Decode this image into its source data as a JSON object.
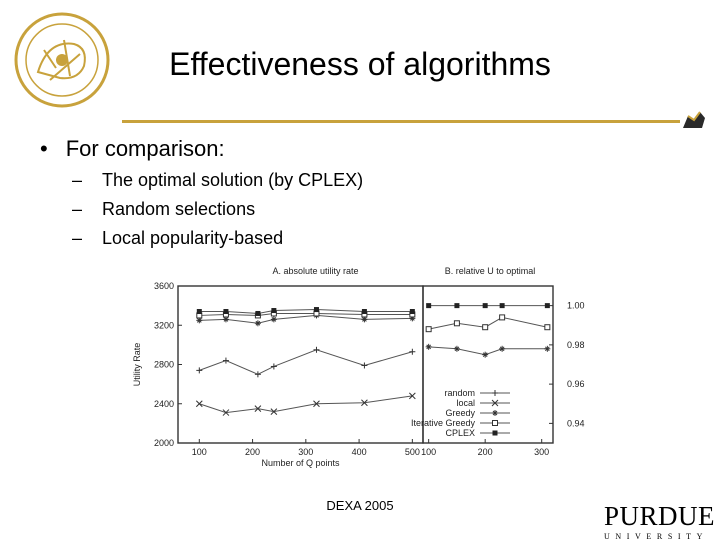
{
  "slide": {
    "title": "Effectiveness of algorithms",
    "bullet": "For comparison:",
    "sub_bullets": [
      "The optimal solution (by CPLEX)",
      "Random selections",
      "Local popularity-based"
    ],
    "footer": "DEXA 2005",
    "brand_word": "PURDUE",
    "brand_sub": "UNIVERSITY",
    "accent_color": "#c8a23c"
  },
  "chart_data": [
    {
      "type": "line",
      "title": "A. absolute utility rate",
      "xlabel": "Number of Q points",
      "ylabel": "Utility Rate",
      "x_ticks": [
        100,
        200,
        300,
        400,
        500
      ],
      "y_ticks": [
        2000,
        2400,
        2800,
        3200,
        3600
      ],
      "xlim": [
        60,
        520
      ],
      "ylim": [
        2000,
        3600
      ],
      "grid": false,
      "series": [
        {
          "name": "random",
          "marker": "plus",
          "x": [
            100,
            150,
            210,
            240,
            320,
            410,
            500
          ],
          "values": [
            2740,
            2840,
            2700,
            2780,
            2950,
            2790,
            2930
          ]
        },
        {
          "name": "local",
          "marker": "cross",
          "x": [
            100,
            150,
            210,
            240,
            320,
            410,
            500
          ],
          "values": [
            2400,
            2310,
            2350,
            2320,
            2400,
            2410,
            2480
          ]
        },
        {
          "name": "Greedy",
          "marker": "star",
          "x": [
            100,
            150,
            210,
            240,
            320,
            410,
            500
          ],
          "values": [
            3250,
            3260,
            3220,
            3260,
            3300,
            3260,
            3270
          ]
        },
        {
          "name": "Iterative Greedy",
          "marker": "square-open",
          "x": [
            100,
            150,
            210,
            240,
            320,
            410,
            500
          ],
          "values": [
            3300,
            3310,
            3300,
            3320,
            3320,
            3310,
            3310
          ]
        },
        {
          "name": "CPLEX",
          "marker": "square-filled",
          "x": [
            100,
            150,
            210,
            240,
            320,
            410,
            500
          ],
          "values": [
            3340,
            3340,
            3320,
            3350,
            3360,
            3340,
            3340
          ]
        }
      ]
    },
    {
      "type": "line",
      "title": "B. relative U to optimal",
      "xlabel": "",
      "ylabel": "",
      "x_ticks": [
        100,
        200,
        300
      ],
      "y_ticks": [
        0.94,
        0.96,
        0.98,
        1.0
      ],
      "y_tick_labels": [
        "0.94",
        "0.96",
        "0.98",
        "1.00"
      ],
      "xlim": [
        90,
        320
      ],
      "ylim": [
        0.93,
        1.01
      ],
      "grid": false,
      "legend": "bottom-left",
      "series": [
        {
          "name": "random",
          "marker": "plus",
          "x": [],
          "values": []
        },
        {
          "name": "local",
          "marker": "cross",
          "x": [],
          "values": []
        },
        {
          "name": "Greedy",
          "marker": "star",
          "x": [
            100,
            150,
            200,
            230,
            310
          ],
          "values": [
            0.979,
            0.978,
            0.975,
            0.978,
            0.978
          ]
        },
        {
          "name": "Iterative Greedy",
          "marker": "square-open",
          "x": [
            100,
            150,
            200,
            230,
            310
          ],
          "values": [
            0.988,
            0.991,
            0.989,
            0.994,
            0.989
          ]
        },
        {
          "name": "CPLEX",
          "marker": "square-filled",
          "x": [
            100,
            150,
            200,
            230,
            310
          ],
          "values": [
            1.0,
            1.0,
            1.0,
            1.0,
            1.0
          ]
        }
      ]
    }
  ]
}
